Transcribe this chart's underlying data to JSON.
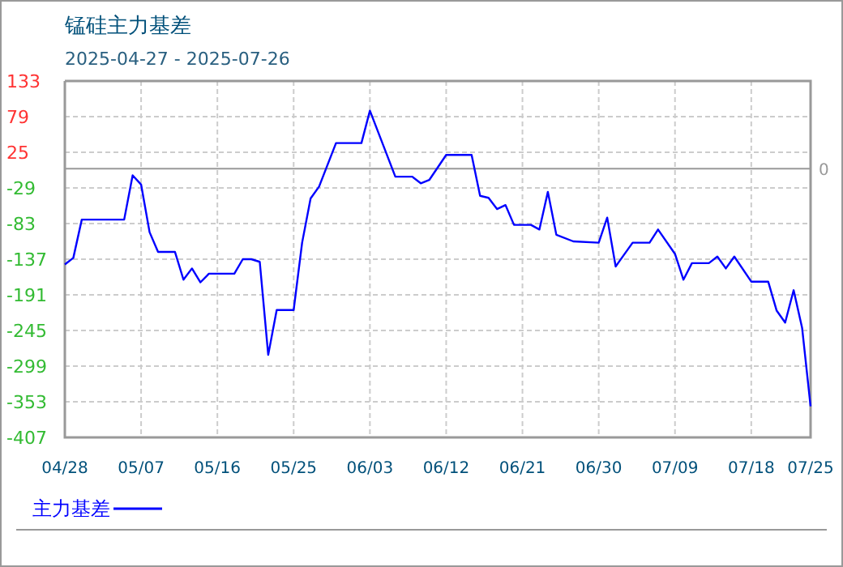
{
  "chart_data": {
    "type": "line",
    "title": "锰硅主力基差",
    "subtitle": "2025-04-27 - 2025-07-26",
    "x": [
      "2025-04-28",
      "2025-04-29",
      "2025-04-30",
      "2025-05-05",
      "2025-05-06",
      "2025-05-07",
      "2025-05-08",
      "2025-05-09",
      "2025-05-11",
      "2025-05-12",
      "2025-05-13",
      "2025-05-14",
      "2025-05-15",
      "2025-05-18",
      "2025-05-19",
      "2025-05-20",
      "2025-05-21",
      "2025-05-22",
      "2025-05-23",
      "2025-05-25",
      "2025-05-26",
      "2025-05-27",
      "2025-05-28",
      "2025-05-30",
      "2025-06-02",
      "2025-06-03",
      "2025-06-06",
      "2025-06-08",
      "2025-06-09",
      "2025-06-10",
      "2025-06-12",
      "2025-06-15",
      "2025-06-16",
      "2025-06-17",
      "2025-06-18",
      "2025-06-19",
      "2025-06-20",
      "2025-06-22",
      "2025-06-23",
      "2025-06-24",
      "2025-06-25",
      "2025-06-27",
      "2025-06-30",
      "2025-07-01",
      "2025-07-02",
      "2025-07-04",
      "2025-07-06",
      "2025-07-07",
      "2025-07-09",
      "2025-07-10",
      "2025-07-11",
      "2025-07-13",
      "2025-07-14",
      "2025-07-15",
      "2025-07-16",
      "2025-07-18",
      "2025-07-20",
      "2025-07-21",
      "2025-07-22",
      "2025-07-23",
      "2025-07-24",
      "2025-07-25"
    ],
    "series": [
      {
        "name": "主力基差",
        "color": "#0000ff",
        "values": [
          -145,
          -135,
          -77,
          -77,
          -10,
          -24,
          -96,
          -126,
          -126,
          -168,
          -151,
          -172,
          -159,
          -159,
          -137,
          -137,
          -141,
          -282,
          -214,
          -214,
          -112,
          -45,
          -27,
          39,
          39,
          88,
          -12,
          -12,
          -22,
          -17,
          21,
          21,
          -41,
          -44,
          -61,
          -55,
          -85,
          -85,
          -92,
          -35,
          -100,
          -110,
          -112,
          -74,
          -148,
          -112,
          -112,
          -92,
          -129,
          -168,
          -143,
          -143,
          -133,
          -151,
          -133,
          -171,
          -171,
          -215,
          -233,
          -184,
          -241,
          -360
        ]
      }
    ],
    "xlim": [
      "2025-04-28",
      "2025-07-25"
    ],
    "xticks": [
      {
        "value": "2025-04-28",
        "label": "04/28"
      },
      {
        "value": "2025-05-07",
        "label": "05/07"
      },
      {
        "value": "2025-05-16",
        "label": "05/16"
      },
      {
        "value": "2025-05-25",
        "label": "05/25"
      },
      {
        "value": "2025-06-03",
        "label": "06/03"
      },
      {
        "value": "2025-06-12",
        "label": "06/12"
      },
      {
        "value": "2025-06-21",
        "label": "06/21"
      },
      {
        "value": "2025-06-30",
        "label": "06/30"
      },
      {
        "value": "2025-07-09",
        "label": "07/09"
      },
      {
        "value": "2025-07-18",
        "label": "07/18"
      },
      {
        "value": "2025-07-25",
        "label": "07/25"
      }
    ],
    "ylim": [
      -407,
      133
    ],
    "yticks": [
      133,
      79,
      25,
      -29,
      -83,
      -137,
      -191,
      -245,
      -299,
      -353,
      -407
    ],
    "ref_lines": [
      {
        "axis": "y",
        "value": 0,
        "label": "0",
        "color": "#999999"
      }
    ],
    "grid": true,
    "legend": "bottom left",
    "line_style": "solid",
    "marker": "none"
  }
}
